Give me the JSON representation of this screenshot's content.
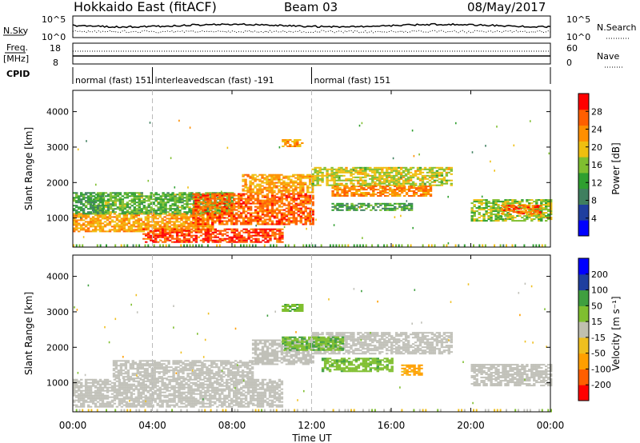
{
  "header": {
    "station": "Hokkaido East (fitACF)",
    "beam": "Beam 03",
    "date": "08/May/2017"
  },
  "nsky": {
    "label": "N.Sky",
    "tick_top": "10^5",
    "tick_bottom": "10^0",
    "right_tick_top": "10^5",
    "right_tick_bottom": "10^0",
    "right_label": "N.Search"
  },
  "freq": {
    "label_line1": "Freq.",
    "label_line2": "[MHz]",
    "tick_top": "18",
    "tick_bottom": "8",
    "right_tick_top": "60",
    "right_tick_bottom": "0",
    "right_label": "Nave"
  },
  "cpid": {
    "label": "CPID",
    "segments": [
      {
        "start": 0,
        "end": 4,
        "text": "normal (fast) 151"
      },
      {
        "start": 4,
        "end": 12,
        "text": "interleavedscan (fast) -191"
      },
      {
        "start": 12,
        "end": 24,
        "text": "normal (fast) 151"
      }
    ]
  },
  "colors": {
    "power": [
      "#0000ff",
      "#1f3f9f",
      "#3f7f5f",
      "#2f9f2f",
      "#7fbf2f",
      "#efbf0f",
      "#ff8f00",
      "#ff5f00",
      "#ff0000"
    ],
    "velocity": [
      "#ff0000",
      "#ff5f00",
      "#ff9f00",
      "#efbf1f",
      "#c0c0b0",
      "#7fbf2f",
      "#3f9f3f",
      "#1f3f9f",
      "#0000ff"
    ],
    "ground_scatter": "#c0c0b8"
  },
  "chart_data": [
    {
      "type": "heatmap",
      "title": "",
      "xlabel": "",
      "ylabel": "Slant Range [km]",
      "xlim": [
        0,
        24
      ],
      "ylim": [
        180,
        4600
      ],
      "x_tick_labels": [
        "00:00",
        "04:00",
        "08:00",
        "12:00",
        "16:00",
        "20:00",
        "00:00"
      ],
      "y_ticks": [
        1000,
        2000,
        3000,
        4000
      ],
      "colorbar": {
        "label": "Power [dB]",
        "ticks": [
          4,
          8,
          12,
          16,
          20,
          24,
          28
        ],
        "range": [
          0,
          32
        ]
      },
      "regions": [
        {
          "t": [
            0.0,
            7.0
          ],
          "r": [
            600,
            1100
          ],
          "value": 22
        },
        {
          "t": [
            1.0,
            8.0
          ],
          "r": [
            1100,
            1700
          ],
          "value": 14
        },
        {
          "t": [
            3.5,
            10.5
          ],
          "r": [
            300,
            700
          ],
          "value": 28
        },
        {
          "t": [
            6.0,
            12.0
          ],
          "r": [
            800,
            1700
          ],
          "value": 26
        },
        {
          "t": [
            8.5,
            12.0
          ],
          "r": [
            1700,
            2200
          ],
          "value": 22
        },
        {
          "t": [
            12.0,
            19.0
          ],
          "r": [
            1900,
            2400
          ],
          "value": 18
        },
        {
          "t": [
            13.0,
            18.0
          ],
          "r": [
            1600,
            1900
          ],
          "value": 24
        },
        {
          "t": [
            13.0,
            17.0
          ],
          "r": [
            1200,
            1400
          ],
          "value": 12
        },
        {
          "t": [
            10.5,
            11.5
          ],
          "r": [
            3000,
            3200
          ],
          "value": 22
        },
        {
          "t": [
            20.0,
            24.0
          ],
          "r": [
            900,
            1500
          ],
          "value": 16
        },
        {
          "t": [
            21.5,
            23.5
          ],
          "r": [
            1100,
            1350
          ],
          "value": 26
        },
        {
          "t": [
            0.0,
            1.5
          ],
          "r": [
            1100,
            1700
          ],
          "value": 12
        }
      ]
    },
    {
      "type": "heatmap",
      "title": "",
      "xlabel": "Time UT",
      "ylabel": "Slant Range [km]",
      "xlim": [
        0,
        24
      ],
      "ylim": [
        180,
        4600
      ],
      "x_tick_labels": [
        "00:00",
        "04:00",
        "08:00",
        "12:00",
        "16:00",
        "20:00",
        "00:00"
      ],
      "y_ticks": [
        1000,
        2000,
        3000,
        4000
      ],
      "colorbar": {
        "label": "Velocity [m s⁻¹]",
        "ticks": [
          "200",
          "100",
          "50",
          "15",
          "-15",
          "-50",
          "-100",
          "-200"
        ]
      },
      "regions": [
        {
          "t": [
            0.0,
            10.5
          ],
          "r": [
            300,
            1100
          ],
          "value": 0
        },
        {
          "t": [
            2.0,
            9.0
          ],
          "r": [
            1100,
            1600
          ],
          "value": 0
        },
        {
          "t": [
            9.0,
            12.0
          ],
          "r": [
            1500,
            2200
          ],
          "value": 0
        },
        {
          "t": [
            12.0,
            19.0
          ],
          "r": [
            1800,
            2400
          ],
          "value": 0
        },
        {
          "t": [
            12.5,
            16.0
          ],
          "r": [
            1300,
            1700
          ],
          "value": 40
        },
        {
          "t": [
            10.5,
            13.5
          ],
          "r": [
            1900,
            2300
          ],
          "value": 45
        },
        {
          "t": [
            16.5,
            17.5
          ],
          "r": [
            1200,
            1500
          ],
          "value": -60
        },
        {
          "t": [
            20.0,
            24.0
          ],
          "r": [
            900,
            1500
          ],
          "value": 0
        },
        {
          "t": [
            10.5,
            11.5
          ],
          "r": [
            3000,
            3200
          ],
          "value": 40
        }
      ]
    }
  ]
}
